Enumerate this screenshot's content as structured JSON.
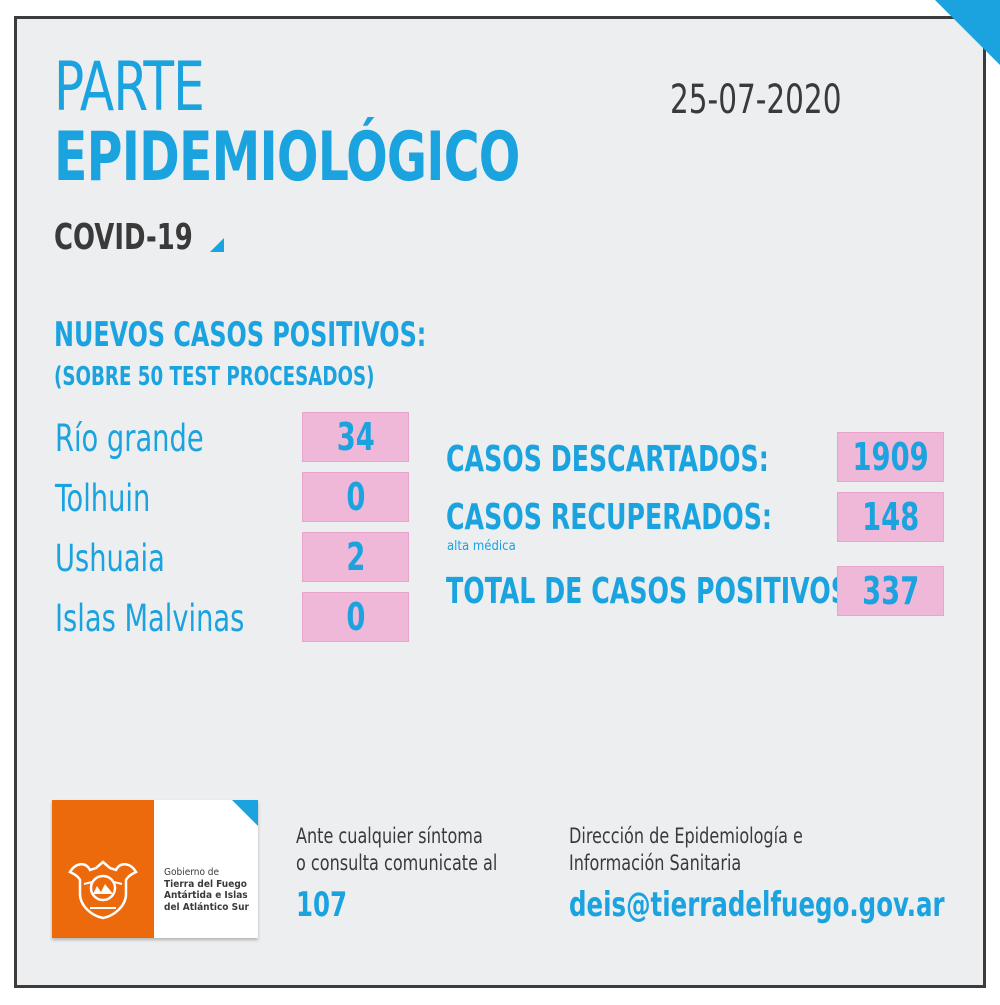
{
  "header": {
    "title_line1": "PARTE",
    "title_line2": "EPIDEMIOLÓGICO",
    "subtitle": "COVID-19",
    "date": "25-07-2020"
  },
  "new_cases": {
    "title": "NUEVOS CASOS POSITIVOS:",
    "subtitle": "(SOBRE 50 TEST PROCESADOS)",
    "locations": [
      {
        "name": "Río grande",
        "value": "34"
      },
      {
        "name": "Tolhuin",
        "value": "0"
      },
      {
        "name": "Ushuaia",
        "value": "2"
      },
      {
        "name": "Islas Malvinas",
        "value": "0"
      }
    ]
  },
  "stats": {
    "discarded_label": "CASOS DESCARTADOS:",
    "discarded_value": "1909",
    "recovered_label": "CASOS RECUPERADOS:",
    "recovered_note": "alta médica",
    "recovered_value": "148",
    "total_label": "TOTAL DE CASOS POSITIVOS",
    "total_value": "337"
  },
  "footer": {
    "logo_line1": "Gobierno de",
    "logo_line2": "Tierra del Fuego",
    "logo_line3": "Antártida e Islas",
    "logo_line4": "del Atlántico Sur",
    "contact_line1": "Ante cualquier síntoma",
    "contact_line2": "o consulta comunicate al",
    "phone": "107",
    "dept_line1": "Dirección de Epidemiología e",
    "dept_line2": "Información Sanitaria",
    "email": "deis@tierradelfuego.gov.ar"
  },
  "colors": {
    "accent": "#1aa3df",
    "pink": "#f0b8d8",
    "orange": "#ec6a0c",
    "background": "#eceef0",
    "text_dark": "#3a3a3a"
  }
}
